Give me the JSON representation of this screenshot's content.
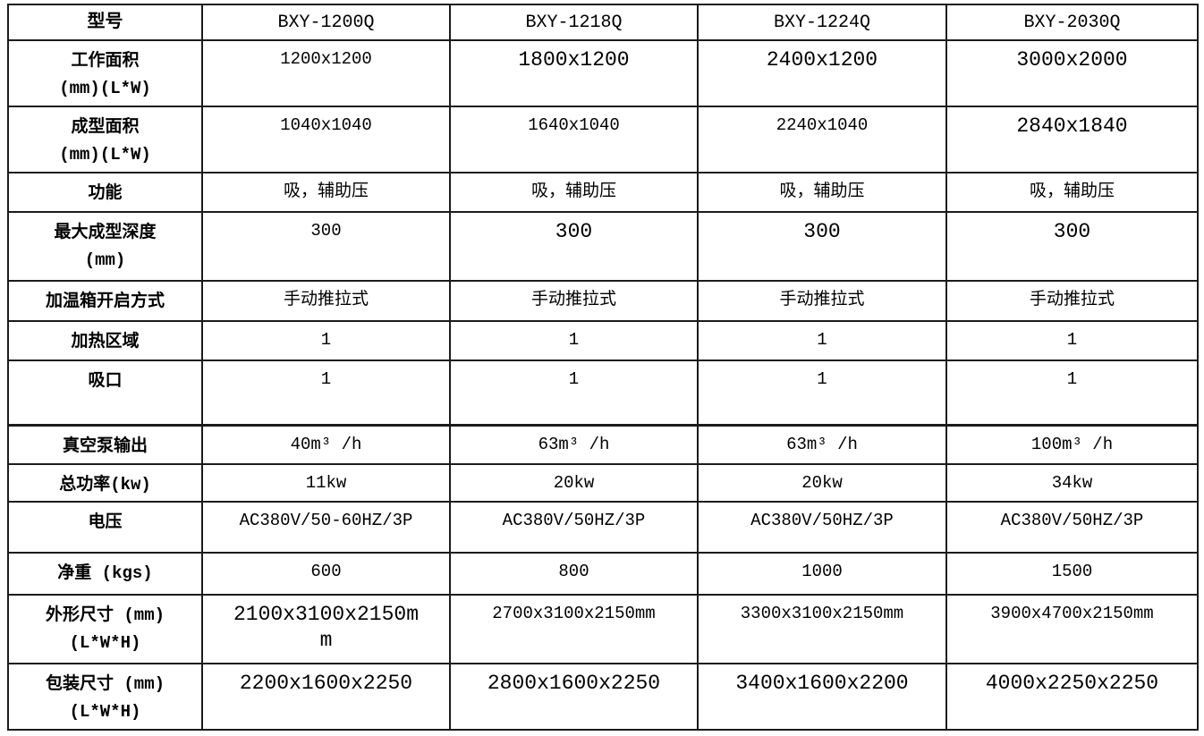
{
  "page": {
    "background_color": "#ffffff",
    "border_color": "#1b1b1b",
    "text_color": "#000000"
  },
  "table": {
    "header": {
      "label": "型号",
      "models": [
        "BXY-1200Q",
        "BXY-1218Q",
        "BXY-1224Q",
        "BXY-2030Q"
      ]
    },
    "rows": [
      {
        "label_lines": [
          "工作面积",
          "(mm)(L*W)"
        ],
        "values": [
          "1200x1200",
          "1800x1200",
          "2400x1200",
          "3000x2000"
        ],
        "large": [
          false,
          true,
          true,
          true
        ]
      },
      {
        "label_lines": [
          "成型面积",
          "(mm)(L*W)"
        ],
        "values": [
          "1040x1040",
          "1640x1040",
          "2240x1040",
          "2840x1840"
        ],
        "large": [
          false,
          false,
          false,
          true
        ]
      },
      {
        "label_lines": [
          "功能"
        ],
        "values": [
          "吸，辅助压",
          "吸，辅助压",
          "吸，辅助压",
          "吸，辅助压"
        ],
        "large": [
          false,
          false,
          false,
          false
        ]
      },
      {
        "label_lines": [
          "最大成型深度",
          "(mm)"
        ],
        "values": [
          "300",
          "300",
          "300",
          "300"
        ],
        "large": [
          false,
          true,
          true,
          true
        ]
      },
      {
        "label_lines": [
          "加温箱开启方式"
        ],
        "values": [
          "手动推拉式",
          "手动推拉式",
          "手动推拉式",
          "手动推拉式"
        ],
        "large": [
          false,
          false,
          false,
          false
        ]
      },
      {
        "label_lines": [
          "加热区域"
        ],
        "values": [
          "1",
          "1",
          "1",
          "1"
        ],
        "large": [
          false,
          false,
          false,
          false
        ]
      },
      {
        "label_lines": [
          "吸口"
        ],
        "values": [
          "1",
          "1",
          "1",
          "1"
        ],
        "large": [
          false,
          false,
          false,
          false
        ]
      },
      {
        "label_lines": [
          "真空泵输出"
        ],
        "values": [
          "40m³ /h",
          "63m³ /h",
          "63m³ /h",
          "100m³ /h"
        ],
        "large": [
          false,
          false,
          false,
          false
        ],
        "thick_top": true
      },
      {
        "label_lines": [
          "总功率(kw)"
        ],
        "values": [
          "11kw",
          "20kw",
          "20kw",
          "34kw"
        ],
        "large": [
          false,
          false,
          false,
          false
        ]
      },
      {
        "label_lines": [
          "电压"
        ],
        "values": [
          "AC380V/50-60HZ/3P",
          "AC380V/50HZ/3P",
          "AC380V/50HZ/3P",
          "AC380V/50HZ/3P"
        ],
        "large": [
          false,
          false,
          false,
          false
        ]
      },
      {
        "label_lines": [
          "净重 (kgs)"
        ],
        "values": [
          "600",
          "800",
          "1000",
          "1500"
        ],
        "large": [
          false,
          false,
          false,
          false
        ]
      },
      {
        "label_lines": [
          "外形尺寸 (mm)",
          "(L*W*H)"
        ],
        "values": [
          "2100x3100x2150mm",
          "2700x3100x2150mm",
          "3300x3100x2150mm",
          "3900x4700x2150mm"
        ],
        "large": [
          true,
          false,
          false,
          false
        ]
      },
      {
        "label_lines": [
          "包装尺寸 (mm)",
          "(L*W*H)"
        ],
        "values": [
          "2200x1600x2250",
          "2800x1600x2250",
          "3400x1600x2200",
          "4000x2250x2250"
        ],
        "large": [
          true,
          true,
          true,
          true
        ]
      }
    ]
  }
}
